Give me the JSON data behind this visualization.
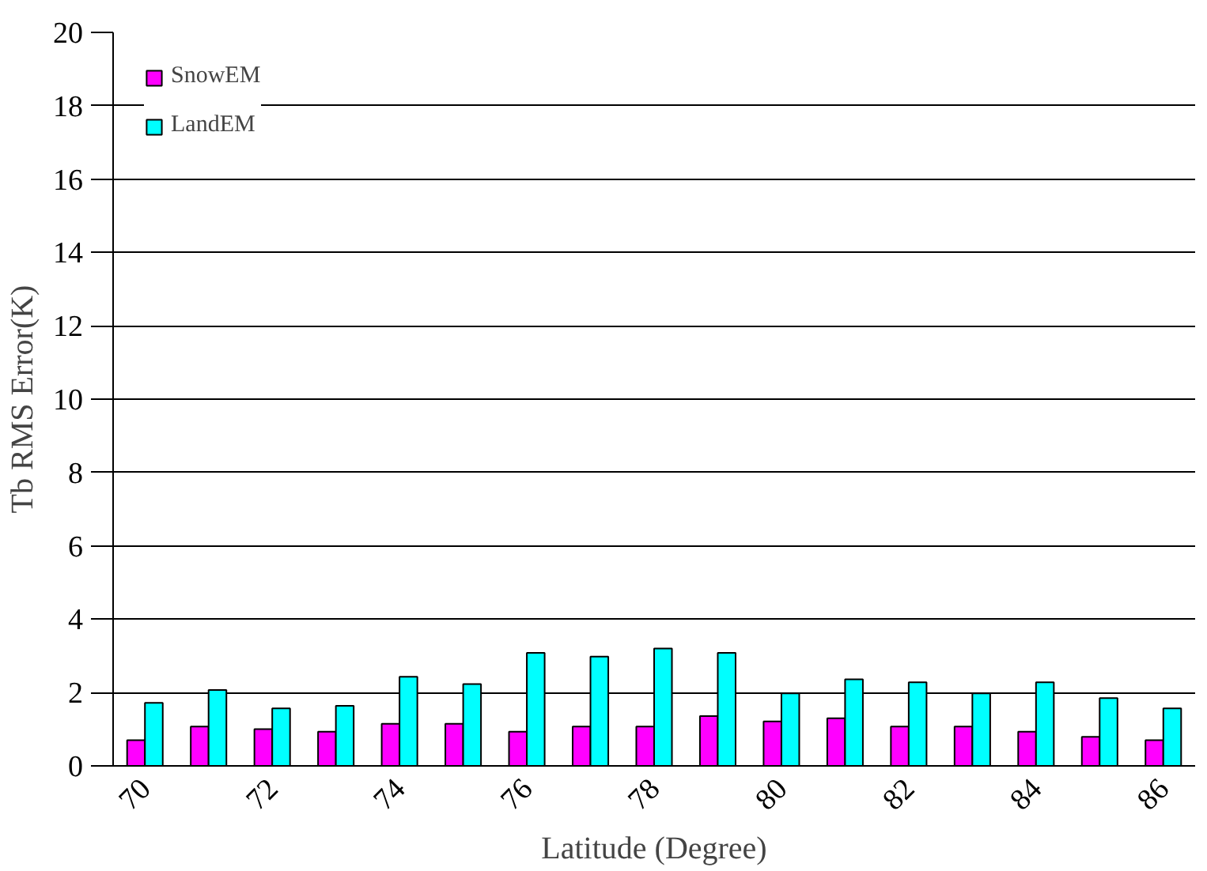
{
  "chart_data": {
    "type": "bar",
    "xlabel": "Latitude (Degree)",
    "ylabel": "Tb RMS Error(K)",
    "categories": [
      "70",
      null,
      "72",
      null,
      "74",
      null,
      "76",
      null,
      "78",
      null,
      "80",
      null,
      "82",
      null,
      "84",
      null,
      "86"
    ],
    "series": [
      {
        "name": "SnowEM",
        "color": "#ff00ff",
        "values": [
          0.7,
          1.07,
          1.0,
          0.93,
          1.15,
          1.15,
          0.93,
          1.07,
          1.07,
          1.36,
          1.21,
          1.3,
          1.07,
          1.07,
          0.93,
          0.79,
          0.7
        ]
      },
      {
        "name": "LandEM",
        "color": "#00ffff",
        "values": [
          1.72,
          2.07,
          1.57,
          1.64,
          2.43,
          2.23,
          3.08,
          2.98,
          3.2,
          3.08,
          1.98,
          2.36,
          2.28,
          1.98,
          2.28,
          1.85,
          1.57
        ]
      }
    ],
    "ylim": [
      0,
      20
    ],
    "yticks": [
      0,
      2,
      4,
      6,
      8,
      10,
      12,
      14,
      16,
      18,
      20
    ],
    "grid": "y",
    "legend": "top left"
  }
}
